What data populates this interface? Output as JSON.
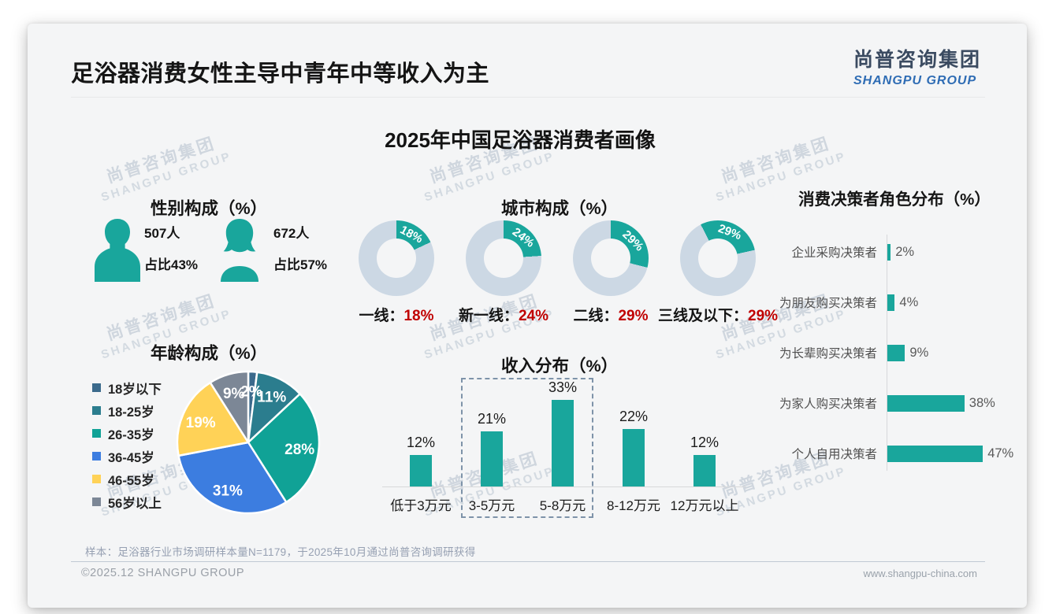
{
  "slide": {
    "header_title": "足浴器消费女性主导中青年中等收入为主",
    "logo_cn": "尚普咨询集团",
    "logo_en": "SHANGPU GROUP",
    "main_title": "2025年中国足浴器消费者画像",
    "watermark_cn": "尚普咨询集团",
    "watermark_en": "SHANGPU GROUP",
    "footnote": "样本：足浴器行业市场调研样本量N=1179，于2025年10月通过尚普咨询调研获得",
    "footer_left": "©2025.12 SHANGPU GROUP",
    "footer_right": "www.shangpu-china.com"
  },
  "colors": {
    "teal": "#19a69c",
    "red": "#c00000",
    "donut_track": "#ccd8e4",
    "logo_navy": "#3b4b61",
    "logo_blue": "#2e6cb4"
  },
  "chart_data": [
    {
      "id": "gender",
      "type": "pictogram",
      "title": "性别构成（%）",
      "items": [
        {
          "gender": "male",
          "count_label": "507人",
          "share_label": "占比43%",
          "value": 43
        },
        {
          "gender": "female",
          "count_label": "672人",
          "share_label": "占比57%",
          "value": 57
        }
      ]
    },
    {
      "id": "city",
      "type": "pie",
      "subtype": "donut-set",
      "title": "城市构成（%）",
      "separator": "：",
      "value_format": "{v}%",
      "items": [
        {
          "label": "一线",
          "value": 18,
          "start_angle": 0
        },
        {
          "label": "新一线",
          "value": 24,
          "start_angle": 0
        },
        {
          "label": "二线",
          "value": 29,
          "start_angle": 0
        },
        {
          "label": "三线及以下",
          "value": 29,
          "start_angle": -27
        }
      ]
    },
    {
      "id": "decision",
      "type": "bar",
      "orientation": "horizontal",
      "title": "消费决策者角色分布（%）",
      "categories": [
        "企业采购决策者",
        "为朋友购买决策者",
        "为长辈购买决策者",
        "为家人购买决策者",
        "个人自用决策者"
      ],
      "values": [
        2,
        4,
        9,
        38,
        47
      ],
      "xlim": [
        0,
        50
      ],
      "bar_color": "#19a69c",
      "value_format": "{v}%",
      "grid": false
    },
    {
      "id": "age",
      "type": "pie",
      "title": "年龄构成（%）",
      "categories": [
        "18岁以下",
        "18-25岁",
        "26-35岁",
        "36-45岁",
        "46-55岁",
        "56岁以上"
      ],
      "values": [
        2,
        11,
        28,
        31,
        19,
        9
      ],
      "colors": [
        "#3b6a8c",
        "#2b7d8e",
        "#10a296",
        "#3c7de0",
        "#ffd257",
        "#7c8796"
      ],
      "legend_position": "left",
      "label_format": "{v}%",
      "start_angle_deg_from_top": 0
    },
    {
      "id": "income",
      "type": "bar",
      "orientation": "vertical",
      "title": "收入分布（%）",
      "categories": [
        "低于3万元",
        "3-5万元",
        "5-8万元",
        "8-12万元",
        "12万元以上"
      ],
      "values": [
        12,
        21,
        33,
        22,
        12
      ],
      "ylim": [
        0,
        40
      ],
      "bar_color": "#19a69c",
      "value_format": "{v}%",
      "grid": false,
      "highlight_box": {
        "from_category": "3-5万元",
        "to_category": "5-8万元",
        "style": "dashed"
      }
    }
  ]
}
